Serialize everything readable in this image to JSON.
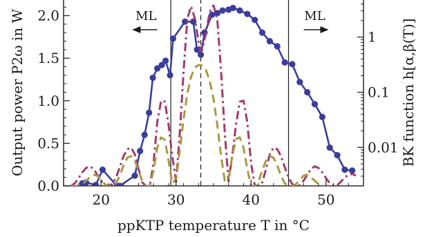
{
  "chart_data": {
    "type": "line",
    "xlabel": "ppKTP temperature T in °C",
    "ylabel": "Output power P2ω in W",
    "y2label": "BK function h[α,β(T)]",
    "xlim": [
      15,
      55
    ],
    "ylim": [
      0,
      2.2
    ],
    "y2lim": [
      0.002,
      5
    ],
    "y2scale": "log",
    "x_ticks": [
      20,
      30,
      40,
      50
    ],
    "y_ticks": [
      0.0,
      0.5,
      1.0,
      1.5,
      2.0
    ],
    "y_tick_labels": [
      "0.0",
      "0.5",
      "1.0",
      "1.5",
      "2.0"
    ],
    "y2_ticks": [
      0.01,
      0.1,
      1
    ],
    "y2_tick_labels": [
      "0.01",
      "0.1",
      "1"
    ],
    "grid": false,
    "vertical_lines": [
      {
        "x": 29.3,
        "style": "solid"
      },
      {
        "x": 33.3,
        "style": "dashed"
      },
      {
        "x": 45.0,
        "style": "solid"
      }
    ],
    "annotations": [
      {
        "text": "ML",
        "direction": "left",
        "x": 26.0
      },
      {
        "text": "ML",
        "direction": "right",
        "x": 48.5
      }
    ],
    "series": [
      {
        "style": "solid-markers",
        "color": "#3a3d9c",
        "x": [
          17.5,
          18.0,
          19.3,
          20.2,
          22.1,
          22.5,
          24.5,
          25.2,
          25.8,
          26.4,
          26.9,
          27.5,
          28.1,
          28.6,
          29.2,
          29.6,
          31.2,
          32.3,
          32.8,
          33.3,
          33.8,
          34.8,
          35.5,
          36.2,
          37.0,
          37.6,
          38.5,
          39.5,
          40.5,
          41.5,
          42.5,
          43.5,
          44.5,
          45.5,
          46.5,
          47.5,
          48.5,
          49.5,
          50.5,
          51.5,
          52.5,
          53.5
        ],
        "y": [
          0.03,
          0.04,
          0.01,
          0.19,
          0.0,
          0.0,
          0.12,
          0.41,
          0.6,
          0.86,
          1.27,
          1.38,
          1.42,
          1.47,
          1.3,
          1.73,
          1.93,
          1.93,
          1.6,
          1.54,
          1.8,
          2.01,
          2.03,
          2.06,
          2.07,
          2.09,
          2.06,
          2.02,
          1.95,
          1.8,
          1.7,
          1.64,
          1.45,
          1.43,
          1.22,
          1.1,
          0.96,
          0.81,
          0.45,
          0.36,
          0.19,
          0.18
        ]
      },
      {
        "style": "dashdot",
        "color": "#a5386b",
        "x": [
          16.0,
          16.5,
          17.0,
          17.5,
          18.0,
          18.5,
          19.0,
          19.5,
          20.0,
          20.5,
          21.0,
          21.5,
          22.0,
          22.5,
          23.0,
          23.5,
          24.0,
          24.5,
          25.0,
          25.5,
          26.0,
          26.5,
          27.0,
          27.5,
          28.0,
          28.5,
          29.0,
          29.5,
          30.0,
          30.5,
          31.0,
          31.5,
          32.0,
          32.5,
          33.0,
          33.3,
          33.5,
          34.0,
          34.5,
          35.0,
          35.5,
          36.0,
          36.5,
          37.0,
          37.5,
          38.0,
          38.5,
          39.0,
          39.5,
          40.0,
          40.5,
          41.0,
          41.5,
          42.0,
          42.5,
          43.0,
          43.5,
          44.0,
          44.5,
          45.0,
          45.5,
          46.0,
          46.5,
          47.0,
          47.5,
          48.0,
          48.5,
          49.0,
          49.5,
          50.0,
          50.5,
          51.0,
          51.5,
          52.0,
          52.5,
          53.0,
          53.5,
          54.0
        ],
        "y": [
          0.0,
          0.03,
          0.09,
          0.16,
          0.21,
          0.23,
          0.2,
          0.13,
          0.06,
          0.01,
          0.0,
          0.02,
          0.1,
          0.22,
          0.35,
          0.43,
          0.45,
          0.37,
          0.2,
          0.04,
          0.0,
          0.0,
          0.27,
          0.75,
          1.0,
          0.99,
          0.72,
          0.35,
          0.05,
          0.62,
          1.34,
          1.96,
          2.11,
          1.97,
          1.7,
          1.58,
          1.6,
          1.8,
          2.05,
          2.12,
          1.96,
          1.35,
          0.62,
          0.05,
          0.35,
          0.72,
          0.99,
          1.0,
          0.75,
          0.27,
          0.0,
          0.0,
          0.04,
          0.2,
          0.37,
          0.45,
          0.43,
          0.35,
          0.22,
          0.1,
          0.02,
          0.0,
          0.01,
          0.06,
          0.13,
          0.2,
          0.23,
          0.21,
          0.16,
          0.09,
          0.03,
          0.0,
          0.01,
          0.05,
          0.1,
          0.13,
          0.14,
          0.12
        ]
      },
      {
        "style": "dashed",
        "color": "#a89a3d",
        "x": [
          16.0,
          16.5,
          17.0,
          17.5,
          18.0,
          18.5,
          19.0,
          19.5,
          20.0,
          20.5,
          21.0,
          21.5,
          22.0,
          22.5,
          23.0,
          23.5,
          24.0,
          24.5,
          25.0,
          25.5,
          26.0,
          26.5,
          27.0,
          27.5,
          28.0,
          28.5,
          29.0,
          29.5,
          30.0,
          30.5,
          31.0,
          31.5,
          32.0,
          32.5,
          33.0,
          33.3,
          33.5,
          34.0,
          34.5,
          35.0,
          35.5,
          36.0,
          36.5,
          37.0,
          37.5,
          38.0,
          38.5,
          39.0,
          39.5,
          40.0,
          40.5,
          41.0,
          41.5,
          42.0,
          42.5,
          43.0,
          43.5,
          44.0,
          44.5,
          45.0,
          45.5,
          46.0,
          46.5,
          47.0,
          47.5,
          48.0,
          48.5,
          49.0,
          49.5,
          50.0,
          50.5,
          51.0
        ],
        "y": [
          0.0,
          0.0,
          0.0,
          0.02,
          0.06,
          0.1,
          0.13,
          0.12,
          0.07,
          0.02,
          0.0,
          0.0,
          0.03,
          0.12,
          0.24,
          0.33,
          0.35,
          0.3,
          0.18,
          0.05,
          0.0,
          0.0,
          0.18,
          0.45,
          0.57,
          0.54,
          0.3,
          0.03,
          0.08,
          0.42,
          0.78,
          1.08,
          1.28,
          1.39,
          1.42,
          1.42,
          1.41,
          1.36,
          1.23,
          1.02,
          0.72,
          0.35,
          0.06,
          0.08,
          0.35,
          0.55,
          0.57,
          0.45,
          0.2,
          0.0,
          0.0,
          0.05,
          0.18,
          0.3,
          0.35,
          0.33,
          0.24,
          0.12,
          0.03,
          0.0,
          0.0,
          0.02,
          0.07,
          0.12,
          0.13,
          0.1,
          0.06,
          0.02,
          0.0,
          0.0,
          0.0,
          0.0
        ]
      }
    ]
  }
}
